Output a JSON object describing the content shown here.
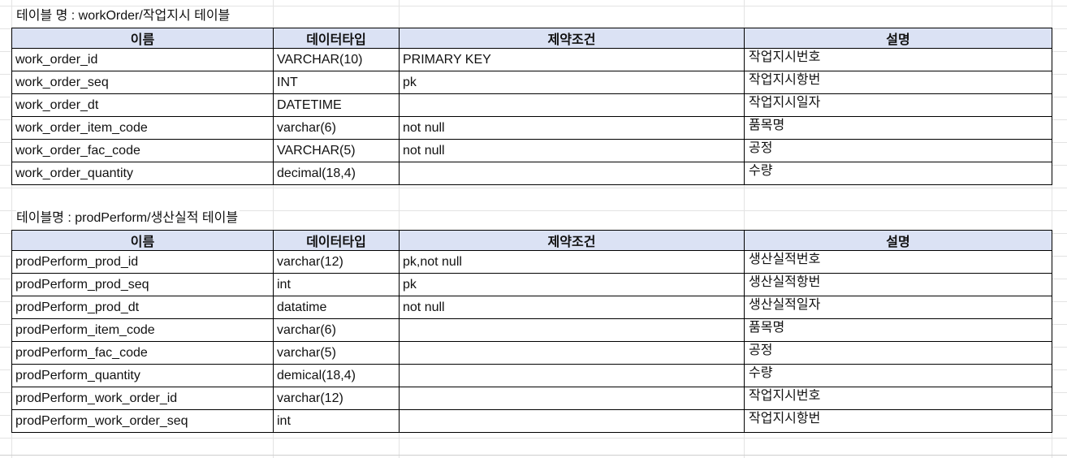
{
  "tables": [
    {
      "title": "테이블 명 : workOrder/작업지시 테이블",
      "headers": [
        "이름",
        "데이터타입",
        "제약조건",
        "설명"
      ],
      "rows": [
        [
          "work_order_id",
          "VARCHAR(10)",
          "PRIMARY KEY",
          "작업지시번호"
        ],
        [
          "work_order_seq",
          "INT",
          "pk",
          "작업지시항번"
        ],
        [
          "work_order_dt",
          "DATETIME",
          "",
          "작업지시일자"
        ],
        [
          "work_order_item_code",
          "varchar(6)",
          "not null",
          "품목명"
        ],
        [
          "work_order_fac_code",
          "VARCHAR(5)",
          "not null",
          "공정"
        ],
        [
          "work_order_quantity",
          "decimal(18,4)",
          "",
          "수량"
        ]
      ]
    },
    {
      "title": "테이블명 : prodPerform/생산실적 테이블",
      "headers": [
        "이름",
        "데이터타입",
        "제약조건",
        "설명"
      ],
      "rows": [
        [
          "prodPerform_prod_id",
          "varchar(12)",
          "pk,not null",
          "생산실적번호"
        ],
        [
          "prodPerform_prod_seq",
          "int",
          "pk",
          "생산실적항번"
        ],
        [
          "prodPerform_prod_dt",
          "datatime",
          "not null",
          "생산실적일자"
        ],
        [
          "prodPerform_item_code",
          "varchar(6)",
          "",
          "품목명"
        ],
        [
          "prodPerform_fac_code",
          "varchar(5)",
          "",
          "공정"
        ],
        [
          "prodPerform_quantity",
          "demical(18,4)",
          "",
          "수량"
        ],
        [
          "prodPerform_work_order_id",
          "varchar(12)",
          "",
          "작업지시번호"
        ],
        [
          "prodPerform_work_order_seq",
          "int",
          "",
          "작업지시항번"
        ]
      ]
    }
  ]
}
